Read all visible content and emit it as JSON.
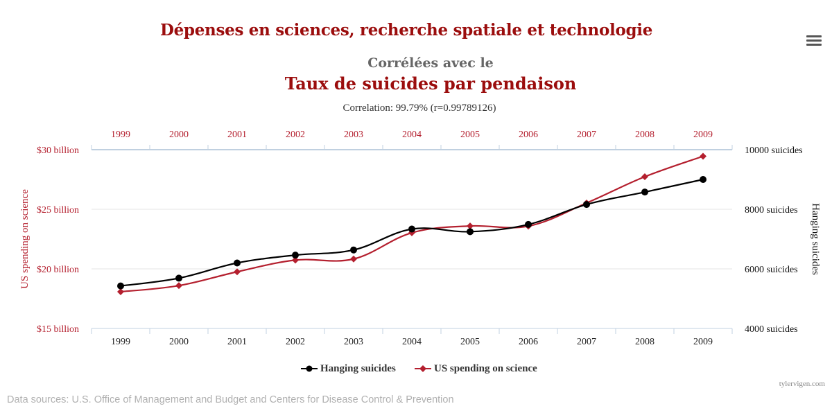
{
  "header": {
    "title": "Dépenses en sciences, recherche spatiale et technologie",
    "subtitle": "Corrélées avec le",
    "title2": "Taux de suicides par pendaison",
    "correlation": "Correlation: 99.79% (r=0.99789126)"
  },
  "menu_icon": "hamburger-menu-icon",
  "colors": {
    "science": "#b41f2e",
    "hanging": "#000000",
    "title": "#9b0d0d",
    "grid": "#e6e6e6",
    "top_axis": "#c0d0e0"
  },
  "chart_data": {
    "type": "line",
    "categories": [
      "1999",
      "2000",
      "2001",
      "2002",
      "2003",
      "2004",
      "2005",
      "2006",
      "2007",
      "2008",
      "2009"
    ],
    "top_axis_labels": [
      "1999",
      "2000",
      "2001",
      "2002",
      "2003",
      "2004",
      "2005",
      "2006",
      "2007",
      "2008",
      "2009"
    ],
    "series": [
      {
        "name": "Hanging suicides",
        "axis": "right",
        "color": "#000000",
        "marker": "circle",
        "values": [
          5427,
          5688,
          6198,
          6462,
          6635,
          7336,
          7248,
          7491,
          8161,
          8578,
          9000
        ]
      },
      {
        "name": "US spending on science",
        "axis": "left",
        "color": "#b41f2e",
        "marker": "diamond",
        "values": [
          18.079,
          18.594,
          19.753,
          20.734,
          20.831,
          23.029,
          23.597,
          23.584,
          25.525,
          27.731,
          29.449
        ]
      }
    ],
    "y_left": {
      "label": "US spending on science",
      "ticks": [
        "$15 billion",
        "$20 billion",
        "$25 billion",
        "$30 billion"
      ],
      "min": 15,
      "max": 30
    },
    "y_right": {
      "label": "Hanging suicides",
      "ticks": [
        "4000 suicides",
        "6000 suicides",
        "8000 suicides",
        "10000 suicides"
      ],
      "min": 4000,
      "max": 10000
    },
    "grid": true,
    "legend_position": "bottom-center"
  },
  "footer": {
    "credit": "tylervigen.com",
    "sources": "Data sources: U.S. Office of Management and Budget and Centers for Disease Control & Prevention"
  }
}
